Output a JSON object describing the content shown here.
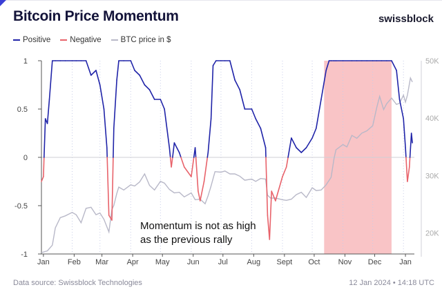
{
  "header": {
    "title": "Bitcoin Price Momentum",
    "brand": "swissblock"
  },
  "legend": [
    {
      "label": "Positive",
      "color": "#1f23a8"
    },
    {
      "label": "Negative",
      "color": "#e8626a"
    },
    {
      "label": "BTC price in $",
      "color": "#b8b8c8"
    }
  ],
  "footer": {
    "source": "Data source: Swissblock Technologies",
    "timestamp": "12 Jan 2024 • 14:18 UTC"
  },
  "chart_data": {
    "type": "line",
    "title": "Bitcoin Price Momentum",
    "x_ticks": [
      "Jan",
      "Feb",
      "Mar",
      "Apr",
      "May",
      "Jun",
      "Jul",
      "Aug",
      "Sept",
      "Oct",
      "Nov",
      "Dec",
      "Jan"
    ],
    "left_axis": {
      "ticks": [
        "1",
        "0.5",
        "0",
        "-0.5",
        "-1"
      ],
      "ylim": [
        -1,
        1
      ]
    },
    "right_axis": {
      "ticks": [
        "50K",
        "40K",
        "30K",
        "20K"
      ],
      "ylim": [
        13000,
        50000
      ]
    },
    "highlight": {
      "from": "2023-10-13",
      "to": "2023-12-20",
      "color": "#f9c4c6"
    },
    "annotation": {
      "lines": [
        "Momentum is not as high",
        "as the previous rally"
      ]
    },
    "momentum": {
      "x": [
        "2023-01-01",
        "2023-01-03",
        "2023-01-05",
        "2023-01-07",
        "2023-01-09",
        "2023-01-12",
        "2023-01-15",
        "2023-01-20",
        "2023-01-25",
        "2023-02-01",
        "2023-02-05",
        "2023-02-10",
        "2023-02-15",
        "2023-02-20",
        "2023-02-25",
        "2023-03-01",
        "2023-03-05",
        "2023-03-08",
        "2023-03-10",
        "2023-03-13",
        "2023-03-15",
        "2023-03-18",
        "2023-03-20",
        "2023-03-25",
        "2023-04-01",
        "2023-04-05",
        "2023-04-10",
        "2023-04-15",
        "2023-04-20",
        "2023-04-25",
        "2023-05-01",
        "2023-05-05",
        "2023-05-10",
        "2023-05-12",
        "2023-05-15",
        "2023-05-20",
        "2023-05-25",
        "2023-06-01",
        "2023-06-05",
        "2023-06-08",
        "2023-06-10",
        "2023-06-14",
        "2023-06-18",
        "2023-06-21",
        "2023-06-23",
        "2023-06-26",
        "2023-07-01",
        "2023-07-05",
        "2023-07-10",
        "2023-07-15",
        "2023-07-20",
        "2023-07-25",
        "2023-08-01",
        "2023-08-05",
        "2023-08-10",
        "2023-08-15",
        "2023-08-17",
        "2023-08-19",
        "2023-08-21",
        "2023-08-25",
        "2023-09-01",
        "2023-09-05",
        "2023-09-10",
        "2023-09-15",
        "2023-09-20",
        "2023-09-25",
        "2023-10-01",
        "2023-10-05",
        "2023-10-10",
        "2023-10-15",
        "2023-10-18",
        "2023-10-20",
        "2023-10-23",
        "2023-10-25",
        "2023-11-01",
        "2023-11-10",
        "2023-11-15",
        "2023-11-20",
        "2023-11-25",
        "2023-12-01",
        "2023-12-05",
        "2023-12-10",
        "2023-12-15",
        "2023-12-20",
        "2023-12-25",
        "2023-12-28",
        "2024-01-01",
        "2024-01-03",
        "2024-01-05",
        "2024-01-07",
        "2024-01-09",
        "2024-01-10"
      ],
      "y": [
        -0.25,
        -0.2,
        0.4,
        0.35,
        0.6,
        1,
        1,
        1,
        1,
        1,
        1,
        1,
        1,
        0.85,
        0.9,
        0.75,
        0.5,
        0.1,
        -0.6,
        -0.65,
        0.3,
        0.8,
        1,
        1,
        1,
        0.9,
        0.85,
        0.75,
        0.7,
        0.6,
        0.6,
        0.5,
        0.1,
        -0.1,
        0.15,
        0.05,
        -0.1,
        -0.2,
        0.1,
        -0.35,
        -0.45,
        -0.25,
        0.05,
        0.4,
        0.95,
        1,
        1,
        1,
        1,
        0.8,
        0.7,
        0.5,
        0.5,
        0.4,
        0.3,
        0.1,
        -0.6,
        -0.85,
        -0.35,
        -0.45,
        -0.2,
        -0.1,
        0.2,
        0.1,
        0.05,
        0.1,
        0.2,
        0.3,
        0.6,
        0.9,
        1,
        1,
        1,
        1,
        1,
        1,
        1,
        1,
        1,
        1,
        1,
        1,
        1,
        1,
        0.9,
        0.6,
        0.4,
        0.1,
        -0.25,
        -0.1,
        0.25,
        0.15
      ]
    },
    "btc_price": {
      "x": [
        "2023-01-01",
        "2023-01-07",
        "2023-01-12",
        "2023-01-15",
        "2023-01-20",
        "2023-01-25",
        "2023-02-01",
        "2023-02-05",
        "2023-02-10",
        "2023-02-15",
        "2023-02-20",
        "2023-02-25",
        "2023-03-01",
        "2023-03-05",
        "2023-03-10",
        "2023-03-13",
        "2023-03-15",
        "2023-03-18",
        "2023-03-20",
        "2023-03-25",
        "2023-04-01",
        "2023-04-05",
        "2023-04-10",
        "2023-04-15",
        "2023-04-20",
        "2023-04-25",
        "2023-05-01",
        "2023-05-05",
        "2023-05-10",
        "2023-05-15",
        "2023-05-20",
        "2023-05-25",
        "2023-06-01",
        "2023-06-05",
        "2023-06-10",
        "2023-06-15",
        "2023-06-18",
        "2023-06-21",
        "2023-06-25",
        "2023-07-01",
        "2023-07-05",
        "2023-07-10",
        "2023-07-15",
        "2023-07-20",
        "2023-07-25",
        "2023-08-01",
        "2023-08-05",
        "2023-08-10",
        "2023-08-15",
        "2023-08-17",
        "2023-08-20",
        "2023-08-25",
        "2023-09-01",
        "2023-09-05",
        "2023-09-10",
        "2023-09-15",
        "2023-09-20",
        "2023-09-25",
        "2023-10-01",
        "2023-10-05",
        "2023-10-10",
        "2023-10-15",
        "2023-10-20",
        "2023-10-23",
        "2023-10-25",
        "2023-11-01",
        "2023-11-05",
        "2023-11-10",
        "2023-11-15",
        "2023-11-20",
        "2023-11-25",
        "2023-12-01",
        "2023-12-05",
        "2023-12-08",
        "2023-12-12",
        "2023-12-15",
        "2023-12-20",
        "2023-12-25",
        "2023-12-28",
        "2024-01-01",
        "2024-01-03",
        "2024-01-05",
        "2024-01-08",
        "2024-01-10"
      ],
      "y": [
        16600,
        16900,
        17900,
        20900,
        22700,
        23000,
        23600,
        23200,
        21800,
        24300,
        24500,
        23200,
        23500,
        22400,
        20200,
        24100,
        24800,
        26900,
        28000,
        27500,
        28400,
        28200,
        28900,
        30300,
        28300,
        27500,
        29000,
        28700,
        27600,
        27000,
        27100,
        26300,
        27000,
        25800,
        25900,
        25100,
        26500,
        28200,
        30700,
        30600,
        30800,
        30300,
        30300,
        29900,
        29200,
        29400,
        29000,
        29500,
        29400,
        26600,
        26100,
        26100,
        25800,
        25700,
        25900,
        26700,
        27100,
        26200,
        27900,
        27400,
        27500,
        28400,
        29700,
        33000,
        34500,
        35400,
        35000,
        37000,
        36500,
        37400,
        37800,
        38700,
        41800,
        43800,
        41500,
        42500,
        43500,
        42400,
        42600,
        44000,
        42800,
        44000,
        47000,
        46300
      ]
    }
  }
}
